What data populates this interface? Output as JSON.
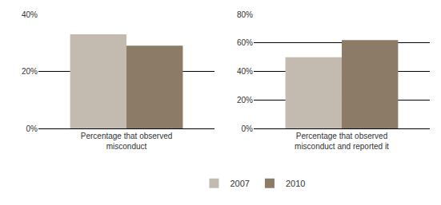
{
  "chart_data": [
    {
      "type": "bar",
      "categories": [
        "Percentage that observed misconduct"
      ],
      "series": [
        {
          "name": "2007",
          "color": "#c4bbb0",
          "values": [
            33
          ]
        },
        {
          "name": "2010",
          "color": "#8c7b67",
          "values": [
            29
          ]
        }
      ],
      "ylim": [
        0,
        40
      ],
      "yticks": [
        {
          "value": 0,
          "label": "0%"
        },
        {
          "value": 20,
          "label": "20%"
        },
        {
          "value": 40,
          "label": "40%"
        }
      ],
      "grid": true
    },
    {
      "type": "bar",
      "categories": [
        "Percentage that observed misconduct and reported it"
      ],
      "series": [
        {
          "name": "2007",
          "color": "#c4bbb0",
          "values": [
            50
          ]
        },
        {
          "name": "2010",
          "color": "#8c7b67",
          "values": [
            62
          ]
        }
      ],
      "ylim": [
        0,
        80
      ],
      "yticks": [
        {
          "value": 0,
          "label": "0%"
        },
        {
          "value": 20,
          "label": "20%"
        },
        {
          "value": 40,
          "label": "40%"
        },
        {
          "value": 60,
          "label": "60%"
        },
        {
          "value": 80,
          "label": "80%"
        }
      ],
      "grid": true,
      "legend": "bottom"
    }
  ]
}
